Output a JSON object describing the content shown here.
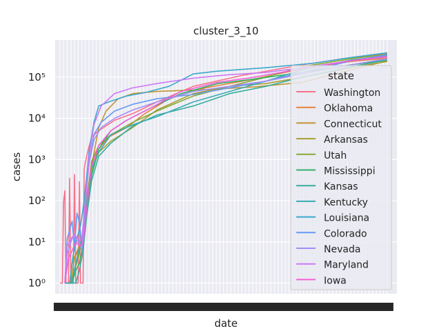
{
  "chart_data": {
    "type": "line",
    "title": "cluster_3_10",
    "xlabel": "date",
    "ylabel": "cases",
    "yscale": "log",
    "ylim": [
      0.55,
      800000
    ],
    "y_ticks": [
      {
        "value": 1,
        "label": "10⁰"
      },
      {
        "value": 10,
        "label": "10¹"
      },
      {
        "value": 100,
        "label": "10²"
      },
      {
        "value": 1000,
        "label": "10³"
      },
      {
        "value": 10000,
        "label": "10⁴"
      },
      {
        "value": 100000,
        "label": "10⁵"
      }
    ],
    "x_tick_labels": "overlapping, unreadable date labels",
    "grid": true,
    "background": "#eaeaf2",
    "legend": {
      "title": "state",
      "placement": "right"
    },
    "series": [
      {
        "name": "Washington",
        "color": "#f77189",
        "points": [
          [
            0,
            1
          ],
          [
            2,
            1
          ],
          [
            3,
            95
          ],
          [
            4,
            175
          ],
          [
            5,
            1
          ],
          [
            7,
            1
          ],
          [
            8,
            350
          ],
          [
            9,
            1
          ],
          [
            11,
            1
          ],
          [
            12,
            430
          ],
          [
            13,
            1
          ],
          [
            15,
            1
          ],
          [
            16,
            290
          ],
          [
            17,
            1
          ],
          [
            18,
            1
          ],
          [
            19,
            1
          ],
          [
            20,
            600
          ],
          [
            22,
            1200
          ],
          [
            26,
            3500
          ],
          [
            32,
            5000
          ],
          [
            45,
            9000
          ],
          [
            60,
            13000
          ],
          [
            80,
            25000
          ],
          [
            110,
            60000
          ],
          [
            150,
            110000
          ],
          [
            200,
            200000
          ],
          [
            240,
            300000
          ],
          [
            270,
            370000
          ]
        ]
      },
      {
        "name": "Oklahoma",
        "color": "#e7813a",
        "points": [
          [
            4,
            1
          ],
          [
            8,
            1
          ],
          [
            10,
            3
          ],
          [
            13,
            5
          ],
          [
            16,
            8
          ],
          [
            19,
            15
          ],
          [
            22,
            110
          ],
          [
            26,
            700
          ],
          [
            32,
            1800
          ],
          [
            40,
            3500
          ],
          [
            55,
            6000
          ],
          [
            70,
            13000
          ],
          [
            90,
            30000
          ],
          [
            120,
            55000
          ],
          [
            160,
            90000
          ],
          [
            200,
            160000
          ],
          [
            240,
            240000
          ],
          [
            270,
            290000
          ]
        ]
      },
      {
        "name": "Connecticut",
        "color": "#c29432",
        "points": [
          [
            5,
            1
          ],
          [
            9,
            1
          ],
          [
            12,
            2
          ],
          [
            15,
            5
          ],
          [
            18,
            9
          ],
          [
            22,
            60
          ],
          [
            26,
            700
          ],
          [
            32,
            6000
          ],
          [
            38,
            15000
          ],
          [
            48,
            30000
          ],
          [
            60,
            40000
          ],
          [
            80,
            45000
          ],
          [
            120,
            50000
          ],
          [
            160,
            58000
          ],
          [
            200,
            75000
          ],
          [
            240,
            150000
          ],
          [
            270,
            250000
          ]
        ]
      },
      {
        "name": "Arkansas",
        "color": "#a69e31",
        "points": [
          [
            5,
            1
          ],
          [
            9,
            1
          ],
          [
            12,
            4
          ],
          [
            15,
            6
          ],
          [
            18,
            12
          ],
          [
            22,
            80
          ],
          [
            26,
            500
          ],
          [
            32,
            1500
          ],
          [
            42,
            2800
          ],
          [
            60,
            6000
          ],
          [
            80,
            16000
          ],
          [
            110,
            40000
          ],
          [
            140,
            60000
          ],
          [
            170,
            70000
          ],
          [
            200,
            100000
          ],
          [
            240,
            170000
          ],
          [
            270,
            240000
          ]
        ]
      },
      {
        "name": "Utah",
        "color": "#85a933",
        "points": [
          [
            5,
            1
          ],
          [
            9,
            1
          ],
          [
            12,
            2
          ],
          [
            15,
            4
          ],
          [
            18,
            10
          ],
          [
            22,
            90
          ],
          [
            26,
            900
          ],
          [
            32,
            2200
          ],
          [
            42,
            4000
          ],
          [
            60,
            8000
          ],
          [
            80,
            15000
          ],
          [
            110,
            35000
          ],
          [
            140,
            60000
          ],
          [
            170,
            100000
          ],
          [
            200,
            180000
          ],
          [
            240,
            280000
          ],
          [
            270,
            360000
          ]
        ]
      },
      {
        "name": "Mississippi",
        "color": "#33b069",
        "points": [
          [
            6,
            1
          ],
          [
            10,
            1
          ],
          [
            13,
            2
          ],
          [
            16,
            3
          ],
          [
            19,
            8
          ],
          [
            22,
            50
          ],
          [
            26,
            400
          ],
          [
            32,
            1800
          ],
          [
            42,
            5000
          ],
          [
            55,
            9000
          ],
          [
            75,
            18000
          ],
          [
            100,
            40000
          ],
          [
            130,
            70000
          ],
          [
            160,
            90000
          ],
          [
            200,
            130000
          ],
          [
            240,
            200000
          ],
          [
            270,
            260000
          ]
        ]
      },
      {
        "name": "Kansas",
        "color": "#35ad9c",
        "points": [
          [
            6,
            1
          ],
          [
            10,
            1
          ],
          [
            13,
            1
          ],
          [
            16,
            2
          ],
          [
            19,
            6
          ],
          [
            22,
            40
          ],
          [
            26,
            300
          ],
          [
            32,
            1200
          ],
          [
            42,
            2500
          ],
          [
            60,
            6500
          ],
          [
            80,
            12000
          ],
          [
            110,
            20000
          ],
          [
            140,
            40000
          ],
          [
            170,
            60000
          ],
          [
            200,
            100000
          ],
          [
            240,
            180000
          ],
          [
            270,
            260000
          ]
        ]
      },
      {
        "name": "Kentucky",
        "color": "#37abb4",
        "points": [
          [
            6,
            1
          ],
          [
            10,
            1
          ],
          [
            13,
            3
          ],
          [
            16,
            7
          ],
          [
            19,
            15
          ],
          [
            22,
            80
          ],
          [
            26,
            600
          ],
          [
            32,
            1500
          ],
          [
            42,
            4000
          ],
          [
            60,
            7000
          ],
          [
            80,
            11000
          ],
          [
            110,
            25000
          ],
          [
            140,
            45000
          ],
          [
            170,
            80000
          ],
          [
            200,
            150000
          ],
          [
            240,
            260000
          ],
          [
            270,
            330000
          ]
        ]
      },
      {
        "name": "Louisiana",
        "color": "#38a8cb",
        "points": [
          [
            4,
            1
          ],
          [
            8,
            1
          ],
          [
            11,
            5
          ],
          [
            14,
            12
          ],
          [
            17,
            25
          ],
          [
            20,
            100
          ],
          [
            24,
            1500
          ],
          [
            28,
            8000
          ],
          [
            32,
            20000
          ],
          [
            40,
            25000
          ],
          [
            55,
            35000
          ],
          [
            70,
            42000
          ],
          [
            90,
            60000
          ],
          [
            110,
            120000
          ],
          [
            130,
            140000
          ],
          [
            170,
            170000
          ],
          [
            210,
            220000
          ],
          [
            240,
            300000
          ],
          [
            270,
            390000
          ]
        ]
      },
      {
        "name": "Colorado",
        "color": "#639af4",
        "points": [
          [
            4,
            1
          ],
          [
            6,
            12
          ],
          [
            8,
            20
          ],
          [
            10,
            32
          ],
          [
            12,
            8
          ],
          [
            14,
            50
          ],
          [
            16,
            30
          ],
          [
            18,
            8
          ],
          [
            20,
            50
          ],
          [
            24,
            800
          ],
          [
            28,
            4000
          ],
          [
            34,
            8000
          ],
          [
            45,
            15000
          ],
          [
            60,
            22000
          ],
          [
            80,
            30000
          ],
          [
            110,
            38000
          ],
          [
            140,
            55000
          ],
          [
            170,
            80000
          ],
          [
            200,
            130000
          ],
          [
            240,
            250000
          ],
          [
            270,
            350000
          ]
        ]
      },
      {
        "name": "Nevada",
        "color": "#a38cf4",
        "points": [
          [
            4,
            1
          ],
          [
            6,
            5
          ],
          [
            8,
            8
          ],
          [
            10,
            12
          ],
          [
            12,
            15
          ],
          [
            15,
            12
          ],
          [
            18,
            6
          ],
          [
            21,
            80
          ],
          [
            24,
            800
          ],
          [
            28,
            3000
          ],
          [
            34,
            6000
          ],
          [
            45,
            10000
          ],
          [
            60,
            16000
          ],
          [
            80,
            25000
          ],
          [
            110,
            45000
          ],
          [
            140,
            60000
          ],
          [
            170,
            80000
          ],
          [
            200,
            120000
          ],
          [
            240,
            200000
          ],
          [
            270,
            280000
          ]
        ]
      },
      {
        "name": "Maryland",
        "color": "#cc7af4",
        "points": [
          [
            4,
            1
          ],
          [
            6,
            8
          ],
          [
            9,
            12
          ],
          [
            12,
            15
          ],
          [
            15,
            10
          ],
          [
            18,
            12
          ],
          [
            21,
            100
          ],
          [
            24,
            1200
          ],
          [
            28,
            7000
          ],
          [
            34,
            20000
          ],
          [
            45,
            40000
          ],
          [
            60,
            55000
          ],
          [
            80,
            70000
          ],
          [
            110,
            95000
          ],
          [
            140,
            115000
          ],
          [
            170,
            130000
          ],
          [
            200,
            170000
          ],
          [
            240,
            250000
          ],
          [
            270,
            310000
          ]
        ]
      },
      {
        "name": "Iowa",
        "color": "#f45fd5",
        "points": [
          [
            4,
            1
          ],
          [
            7,
            4
          ],
          [
            10,
            6
          ],
          [
            13,
            10
          ],
          [
            16,
            8
          ],
          [
            19,
            9
          ],
          [
            22,
            60
          ],
          [
            26,
            700
          ],
          [
            32,
            2200
          ],
          [
            42,
            5000
          ],
          [
            55,
            9000
          ],
          [
            75,
            18000
          ],
          [
            100,
            45000
          ],
          [
            130,
            75000
          ],
          [
            160,
            100000
          ],
          [
            200,
            160000
          ],
          [
            240,
            250000
          ],
          [
            270,
            320000
          ]
        ]
      }
    ]
  }
}
